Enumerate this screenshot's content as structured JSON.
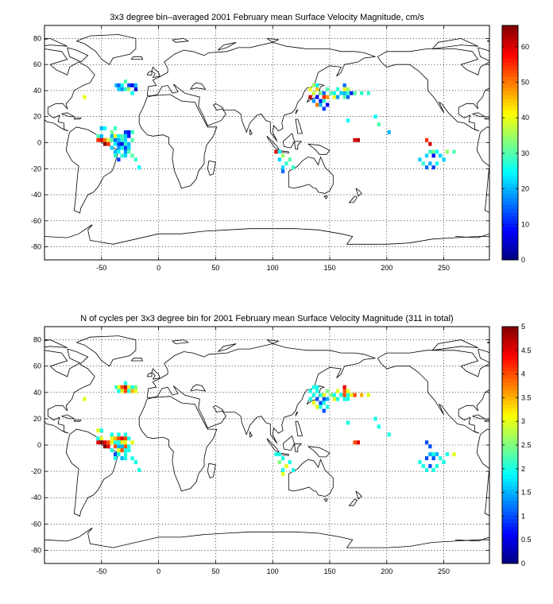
{
  "chart_data": [
    {
      "type": "heatmap",
      "title": "3x3 degree bin–averaged 2001 February mean Surface Velocity Magnitude, cm/s",
      "xlim": [
        -100,
        290
      ],
      "ylim": [
        -90,
        90
      ],
      "xticks": [
        -50,
        0,
        50,
        100,
        150,
        200,
        250
      ],
      "yticks": [
        -80,
        -60,
        -40,
        -20,
        0,
        20,
        40,
        60,
        80
      ],
      "grid": true,
      "colorbar": {
        "min": 0,
        "max": 66,
        "ticks": [
          0,
          10,
          20,
          30,
          40,
          50,
          60
        ],
        "colormap": "jet"
      },
      "cells": [
        [
          -37,
          44,
          20
        ],
        [
          -35,
          44,
          15
        ],
        [
          -32,
          44,
          25
        ],
        [
          -29,
          47,
          30
        ],
        [
          -29,
          41,
          28
        ],
        [
          -32,
          41,
          18
        ],
        [
          -26,
          44,
          12
        ],
        [
          -23,
          44,
          8
        ],
        [
          -20,
          41,
          5
        ],
        [
          -26,
          41,
          35
        ],
        [
          -23,
          38,
          25
        ],
        [
          -35,
          41,
          22
        ],
        [
          -20,
          44,
          20
        ],
        [
          -65,
          35,
          40
        ],
        [
          -50,
          11,
          20
        ],
        [
          -47,
          11,
          25
        ],
        [
          -53,
          5,
          30
        ],
        [
          -50,
          5,
          20
        ],
        [
          -53,
          2,
          55
        ],
        [
          -50,
          2,
          60
        ],
        [
          -47,
          2,
          50
        ],
        [
          -47,
          -1,
          65
        ],
        [
          -44,
          2,
          38
        ],
        [
          -44,
          -1,
          55
        ],
        [
          -41,
          2,
          30
        ],
        [
          -41,
          5,
          20
        ],
        [
          -38,
          2,
          15
        ],
        [
          -38,
          5,
          40
        ],
        [
          -35,
          5,
          25
        ],
        [
          -32,
          5,
          30
        ],
        [
          -29,
          5,
          22
        ],
        [
          -26,
          5,
          10
        ],
        [
          -26,
          8,
          8
        ],
        [
          -35,
          -1,
          12
        ],
        [
          -32,
          -1,
          6
        ],
        [
          -29,
          -1,
          28
        ],
        [
          -26,
          -1,
          20
        ],
        [
          -38,
          -1,
          25
        ],
        [
          -41,
          -4,
          22
        ],
        [
          -35,
          -4,
          18
        ],
        [
          -32,
          -4,
          25
        ],
        [
          -29,
          -4,
          12
        ],
        [
          -26,
          -4,
          22
        ],
        [
          -38,
          -7,
          20
        ],
        [
          -35,
          -7,
          25
        ],
        [
          -29,
          -7,
          18
        ],
        [
          -32,
          -10,
          28
        ],
        [
          -29,
          -10,
          22
        ],
        [
          -23,
          -10,
          30
        ],
        [
          -26,
          -7,
          30
        ],
        [
          -38,
          -10,
          28
        ],
        [
          -35,
          -13,
          12
        ],
        [
          -17,
          -19,
          25
        ],
        [
          -20,
          -13,
          28
        ],
        [
          -23,
          8,
          28
        ],
        [
          -29,
          8,
          12
        ],
        [
          -41,
          8,
          32
        ],
        [
          -38,
          11,
          28
        ],
        [
          -32,
          2,
          28
        ],
        [
          -29,
          2,
          22
        ],
        [
          -35,
          2,
          20
        ],
        [
          -23,
          2,
          30
        ],
        [
          103,
          -7,
          60
        ],
        [
          106,
          -7,
          25
        ],
        [
          106,
          -13,
          22
        ],
        [
          109,
          -10,
          35
        ],
        [
          109,
          -19,
          22
        ],
        [
          109,
          -22,
          15
        ],
        [
          112,
          -16,
          28
        ],
        [
          115,
          -13,
          30
        ],
        [
          118,
          -19,
          28
        ],
        [
          133,
          41,
          40
        ],
        [
          136,
          44,
          35
        ],
        [
          139,
          41,
          45
        ],
        [
          136,
          38,
          38
        ],
        [
          133,
          35,
          62
        ],
        [
          136,
          32,
          18
        ],
        [
          139,
          35,
          8
        ],
        [
          142,
          32,
          10
        ],
        [
          139,
          29,
          50
        ],
        [
          142,
          29,
          20
        ],
        [
          145,
          35,
          55
        ],
        [
          145,
          32,
          28
        ],
        [
          145,
          38,
          15
        ],
        [
          148,
          35,
          48
        ],
        [
          148,
          29,
          8
        ],
        [
          145,
          26,
          12
        ],
        [
          151,
          38,
          30
        ],
        [
          154,
          35,
          40
        ],
        [
          154,
          38,
          25
        ],
        [
          157,
          41,
          28
        ],
        [
          157,
          35,
          18
        ],
        [
          160,
          38,
          22
        ],
        [
          163,
          35,
          30
        ],
        [
          163,
          38,
          20
        ],
        [
          163,
          44,
          15
        ],
        [
          166,
          38,
          28
        ],
        [
          166,
          35,
          15
        ],
        [
          169,
          38,
          10
        ],
        [
          163,
          41,
          40
        ],
        [
          166,
          41,
          35
        ],
        [
          172,
          38,
          30
        ],
        [
          178,
          38,
          28
        ],
        [
          172,
          2,
          60
        ],
        [
          175,
          2,
          62
        ],
        [
          166,
          17,
          25
        ],
        [
          184,
          38,
          28
        ],
        [
          190,
          20,
          25
        ],
        [
          193,
          14,
          30
        ],
        [
          202,
          8,
          20
        ],
        [
          142,
          38,
          32
        ],
        [
          139,
          44,
          25
        ],
        [
          148,
          41,
          30
        ],
        [
          229,
          -13,
          22
        ],
        [
          235,
          2,
          55
        ],
        [
          238,
          -1,
          60
        ],
        [
          238,
          -7,
          28
        ],
        [
          241,
          -7,
          32
        ],
        [
          244,
          -7,
          25
        ],
        [
          235,
          -10,
          22
        ],
        [
          241,
          -10,
          8
        ],
        [
          247,
          -10,
          22
        ],
        [
          232,
          -16,
          28
        ],
        [
          238,
          -16,
          20
        ],
        [
          241,
          -19,
          12
        ],
        [
          244,
          -16,
          25
        ],
        [
          250,
          -13,
          22
        ],
        [
          253,
          -7,
          35
        ],
        [
          259,
          -7,
          30
        ],
        [
          235,
          -19,
          15
        ]
      ]
    },
    {
      "type": "heatmap",
      "title": "N of cycles per 3x3 degree bin for 2001 February mean Surface Velocity Magnitude (311 in total)",
      "xlim": [
        -100,
        290
      ],
      "ylim": [
        -90,
        90
      ],
      "xticks": [
        -50,
        0,
        50,
        100,
        150,
        200,
        250
      ],
      "yticks": [
        -80,
        -60,
        -40,
        -20,
        0,
        20,
        40,
        60,
        80
      ],
      "grid": true,
      "colorbar": {
        "min": 0,
        "max": 5,
        "ticks": [
          0,
          0.5,
          1,
          1.5,
          2,
          2.5,
          3,
          3.5,
          4,
          4.5,
          5
        ],
        "colormap": "jet"
      },
      "cells": [
        [
          -37,
          44,
          2
        ],
        [
          -35,
          44,
          3
        ],
        [
          -32,
          44,
          4
        ],
        [
          -29,
          44,
          4.6
        ],
        [
          -26,
          44,
          3
        ],
        [
          -23,
          44,
          2
        ],
        [
          -20,
          41,
          3
        ],
        [
          -35,
          41,
          2
        ],
        [
          -32,
          41,
          3
        ],
        [
          -29,
          41,
          4
        ],
        [
          -26,
          41,
          2
        ],
        [
          -23,
          41,
          3.5
        ],
        [
          -20,
          44,
          2.5
        ],
        [
          -29,
          47,
          2
        ],
        [
          -65,
          35,
          3
        ],
        [
          -53,
          11,
          3
        ],
        [
          -50,
          11,
          2
        ],
        [
          -53,
          5,
          2
        ],
        [
          -50,
          5,
          3
        ],
        [
          -53,
          2,
          4.5
        ],
        [
          -50,
          2,
          5
        ],
        [
          -47,
          2,
          4.5
        ],
        [
          -47,
          -1,
          5
        ],
        [
          -44,
          2,
          4
        ],
        [
          -44,
          -1,
          4.5
        ],
        [
          -41,
          2,
          3
        ],
        [
          -41,
          5,
          3
        ],
        [
          -38,
          2,
          2
        ],
        [
          -38,
          5,
          3.5
        ],
        [
          -35,
          5,
          4
        ],
        [
          -32,
          5,
          4.5
        ],
        [
          -29,
          5,
          4
        ],
        [
          -26,
          5,
          2
        ],
        [
          -35,
          8,
          2
        ],
        [
          -29,
          8,
          2
        ],
        [
          -41,
          8,
          2
        ],
        [
          -38,
          -1,
          4
        ],
        [
          -35,
          -1,
          1.5
        ],
        [
          -32,
          -1,
          1.5
        ],
        [
          -29,
          -1,
          4
        ],
        [
          -26,
          -1,
          2
        ],
        [
          -41,
          -4,
          2
        ],
        [
          -35,
          -4,
          3
        ],
        [
          -32,
          -4,
          4
        ],
        [
          -29,
          -4,
          2
        ],
        [
          -26,
          -4,
          2
        ],
        [
          -38,
          -7,
          1
        ],
        [
          -35,
          -7,
          2
        ],
        [
          -29,
          -7,
          2
        ],
        [
          -32,
          -10,
          1.5
        ],
        [
          -29,
          -10,
          2
        ],
        [
          -23,
          -10,
          2
        ],
        [
          -17,
          -19,
          2
        ],
        [
          -20,
          -13,
          2
        ],
        [
          -38,
          -10,
          2
        ],
        [
          -32,
          2,
          3
        ],
        [
          -29,
          2,
          3
        ],
        [
          -35,
          2,
          2
        ],
        [
          -23,
          2,
          3
        ],
        [
          103,
          -7,
          2
        ],
        [
          106,
          -7,
          2
        ],
        [
          106,
          -13,
          2.5
        ],
        [
          109,
          -10,
          2
        ],
        [
          109,
          -19,
          2
        ],
        [
          109,
          -22,
          3
        ],
        [
          112,
          -16,
          3
        ],
        [
          115,
          -13,
          2
        ],
        [
          118,
          -19,
          2
        ],
        [
          133,
          41,
          2
        ],
        [
          136,
          44,
          2
        ],
        [
          139,
          41,
          2
        ],
        [
          136,
          38,
          2
        ],
        [
          133,
          35,
          2
        ],
        [
          136,
          32,
          3
        ],
        [
          139,
          35,
          1
        ],
        [
          142,
          32,
          1
        ],
        [
          139,
          29,
          3
        ],
        [
          142,
          29,
          2
        ],
        [
          145,
          35,
          1
        ],
        [
          145,
          32,
          2
        ],
        [
          145,
          38,
          3
        ],
        [
          148,
          35,
          1.5
        ],
        [
          148,
          29,
          2
        ],
        [
          145,
          26,
          1
        ],
        [
          151,
          38,
          2.5
        ],
        [
          154,
          35,
          3
        ],
        [
          154,
          38,
          2
        ],
        [
          157,
          41,
          3
        ],
        [
          157,
          35,
          2
        ],
        [
          160,
          38,
          2
        ],
        [
          163,
          35,
          2
        ],
        [
          163,
          38,
          4
        ],
        [
          163,
          44,
          4.5
        ],
        [
          166,
          38,
          2
        ],
        [
          166,
          35,
          2
        ],
        [
          169,
          38,
          3
        ],
        [
          163,
          41,
          4
        ],
        [
          166,
          41,
          3
        ],
        [
          172,
          38,
          4
        ],
        [
          178,
          38,
          3.5
        ],
        [
          172,
          2,
          4
        ],
        [
          175,
          2,
          4.5
        ],
        [
          166,
          17,
          2
        ],
        [
          184,
          38,
          3
        ],
        [
          190,
          20,
          2
        ],
        [
          193,
          14,
          2
        ],
        [
          202,
          8,
          2
        ],
        [
          142,
          38,
          2
        ],
        [
          139,
          44,
          2
        ],
        [
          148,
          41,
          2.5
        ],
        [
          229,
          -13,
          2
        ],
        [
          235,
          2,
          1
        ],
        [
          238,
          -1,
          1
        ],
        [
          238,
          -7,
          1.5
        ],
        [
          241,
          -7,
          2
        ],
        [
          244,
          -7,
          1.5
        ],
        [
          235,
          -10,
          1
        ],
        [
          241,
          -10,
          1
        ],
        [
          247,
          -10,
          2
        ],
        [
          232,
          -16,
          2
        ],
        [
          238,
          -16,
          1
        ],
        [
          241,
          -19,
          2
        ],
        [
          244,
          -16,
          2
        ],
        [
          250,
          -13,
          2
        ],
        [
          253,
          -7,
          2
        ],
        [
          259,
          -7,
          3
        ],
        [
          235,
          -19,
          2
        ]
      ]
    }
  ]
}
